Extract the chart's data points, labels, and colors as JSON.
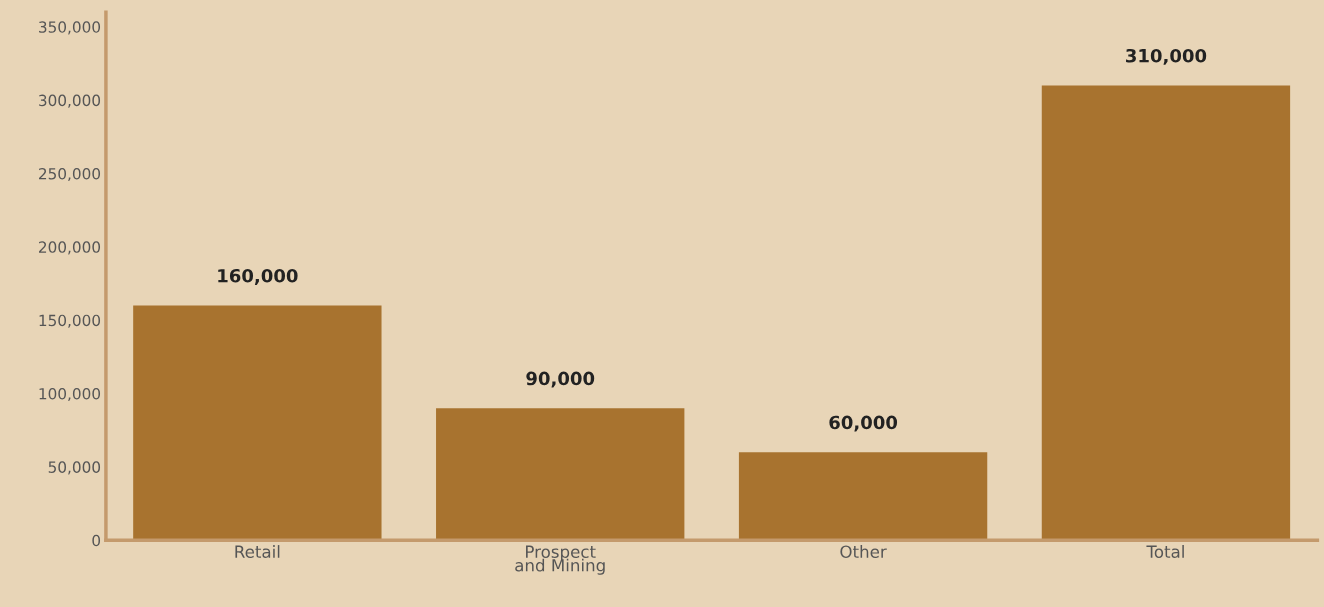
{
  "chart_data": {
    "type": "bar",
    "categories": [
      "Retail",
      "Prospect\nand Mining",
      "Other",
      "Total"
    ],
    "values": [
      160000,
      90000,
      60000,
      310000
    ],
    "color": "#a8732f",
    "value_labels": [
      "160,000",
      "90,000",
      "60,000",
      "310,000"
    ],
    "ylim": [
      0,
      360000
    ],
    "yticks": [
      0,
      {
        "value": 50000,
        "label": "50,000"
      },
      {
        "value": 100000,
        "label": "100,000"
      },
      {
        "value": 150000,
        "label": "150,000"
      },
      {
        "value": 200000,
        "label": "200,000"
      },
      {
        "value": 250000,
        "label": "250,000"
      },
      {
        "value": 300000,
        "label": "300,000"
      },
      {
        "value": 350000,
        "label": "350,000"
      }
    ],
    "grid": false
  }
}
